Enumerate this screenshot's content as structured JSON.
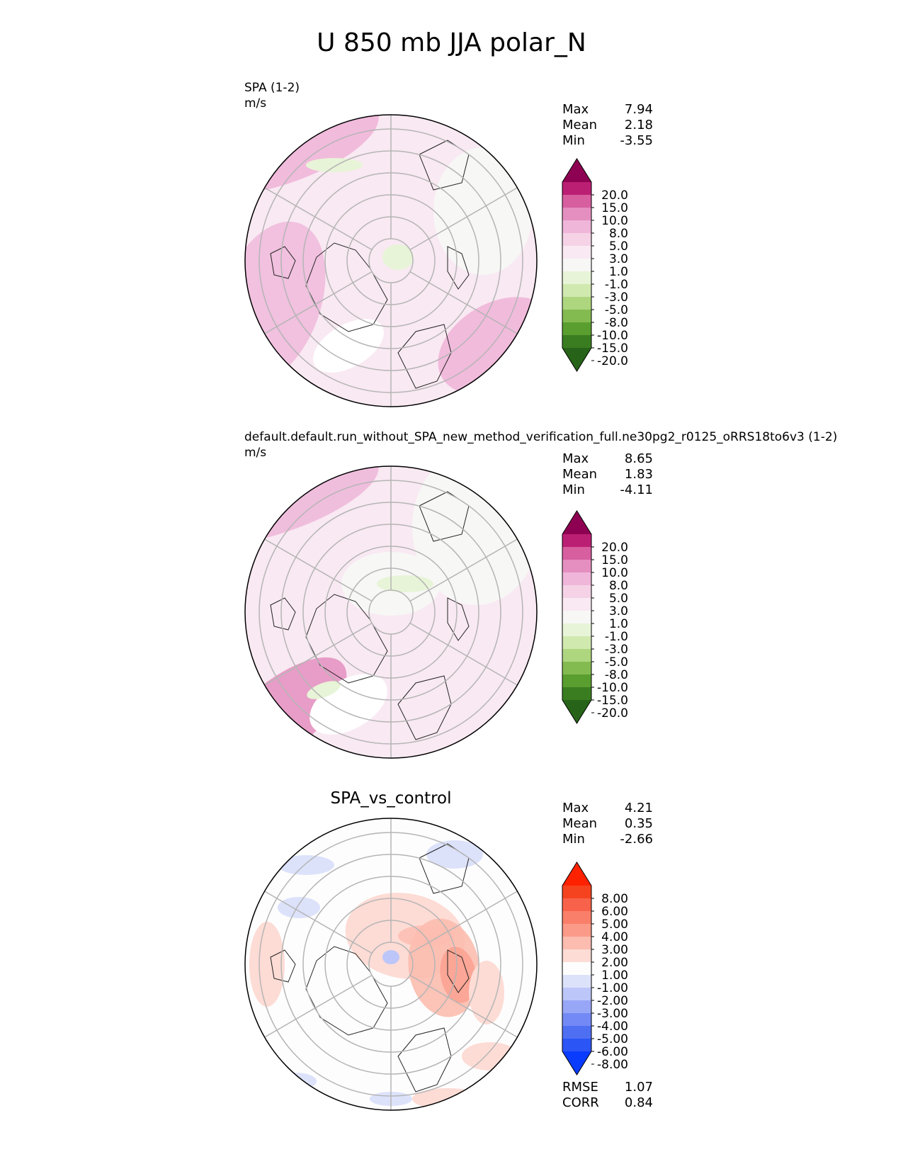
{
  "figure": {
    "title": "U 850 mb JJA polar_N"
  },
  "panels": [
    {
      "id": "test",
      "left_title": "SPA (1-2)",
      "units": "m/s",
      "center_title": "",
      "stats": [
        {
          "label": "Max",
          "value": "7.94"
        },
        {
          "label": "Mean",
          "value": "2.18"
        },
        {
          "label": "Min",
          "value": "-3.55"
        }
      ],
      "colorbar": {
        "colors": [
          "#276419",
          "#3a7d21",
          "#5a9e2f",
          "#84bb51",
          "#aed67f",
          "#d0e9af",
          "#e8f4d7",
          "#f7f7f6",
          "#f9e9f2",
          "#f5d2e6",
          "#efb6d9",
          "#e48fbf",
          "#d75e9f",
          "#bb1f73",
          "#8e0152"
        ],
        "ticks": [
          "20.0",
          "15.0",
          "10.0",
          "8.0",
          "5.0",
          "3.0",
          "1.0",
          "-1.0",
          "-3.0",
          "-5.0",
          "-8.0",
          "-10.0",
          "-15.0",
          "-20.0"
        ]
      },
      "extra_stats": []
    },
    {
      "id": "reference",
      "left_title": "default.default.run_without_SPA_new_method_verification_full.ne30pg2_r0125_oRRS18to6v3 (1-2)",
      "units": "m/s",
      "center_title": "",
      "stats": [
        {
          "label": "Max",
          "value": "8.65"
        },
        {
          "label": "Mean",
          "value": "1.83"
        },
        {
          "label": "Min",
          "value": "-4.11"
        }
      ],
      "colorbar": {
        "colors": [
          "#276419",
          "#3a7d21",
          "#5a9e2f",
          "#84bb51",
          "#aed67f",
          "#d0e9af",
          "#e8f4d7",
          "#f7f7f6",
          "#f9e9f2",
          "#f5d2e6",
          "#efb6d9",
          "#e48fbf",
          "#d75e9f",
          "#bb1f73",
          "#8e0152"
        ],
        "ticks": [
          "20.0",
          "15.0",
          "10.0",
          "8.0",
          "5.0",
          "3.0",
          "1.0",
          "-1.0",
          "-3.0",
          "-5.0",
          "-8.0",
          "-10.0",
          "-15.0",
          "-20.0"
        ]
      },
      "extra_stats": []
    },
    {
      "id": "difference",
      "left_title": "",
      "units": "",
      "center_title": "SPA_vs_control",
      "stats": [
        {
          "label": "Max",
          "value": "4.21"
        },
        {
          "label": "Mean",
          "value": "0.35"
        },
        {
          "label": "Min",
          "value": "-2.66"
        }
      ],
      "colorbar": {
        "colors": [
          "#0a3cff",
          "#2b55f5",
          "#4f6ff3",
          "#7389f5",
          "#98a6f7",
          "#bcc6f9",
          "#dde2fb",
          "#fdfdfd",
          "#fddcd5",
          "#fcbcaf",
          "#fb9a88",
          "#fa7f6a",
          "#f8624a",
          "#f5431f",
          "#ff2200"
        ],
        "ticks": [
          "8.00",
          "6.00",
          "5.00",
          "4.00",
          "3.00",
          "2.00",
          "1.00",
          "-1.00",
          "-2.00",
          "-3.00",
          "-4.00",
          "-5.00",
          "-6.00",
          "-8.00"
        ]
      },
      "extra_stats": [
        {
          "label": "RMSE",
          "value": "1.07"
        },
        {
          "label": "CORR",
          "value": "0.84"
        }
      ]
    }
  ],
  "chart_data": [
    {
      "type": "heatmap",
      "projection": "north polar stereographic",
      "title": "SPA (1-2)",
      "units": "m/s",
      "levels": [
        -20,
        -15,
        -10,
        -8,
        -5,
        -3,
        -1,
        1,
        3,
        5,
        8,
        10,
        15,
        20
      ],
      "max": 7.94,
      "mean": 2.18,
      "min": -3.55
    },
    {
      "type": "heatmap",
      "projection": "north polar stereographic",
      "title": "default.default.run_without_SPA_new_method_verification_full.ne30pg2_r0125_oRRS18to6v3 (1-2)",
      "units": "m/s",
      "levels": [
        -20,
        -15,
        -10,
        -8,
        -5,
        -3,
        -1,
        1,
        3,
        5,
        8,
        10,
        15,
        20
      ],
      "max": 8.65,
      "mean": 1.83,
      "min": -4.11
    },
    {
      "type": "heatmap",
      "projection": "north polar stereographic",
      "title": "SPA_vs_control",
      "levels": [
        -8,
        -6,
        -5,
        -4,
        -3,
        -2,
        -1,
        1,
        2,
        3,
        4,
        5,
        6,
        8
      ],
      "max": 4.21,
      "mean": 0.35,
      "min": -2.66,
      "rmse": 1.07,
      "corr": 0.84
    }
  ]
}
